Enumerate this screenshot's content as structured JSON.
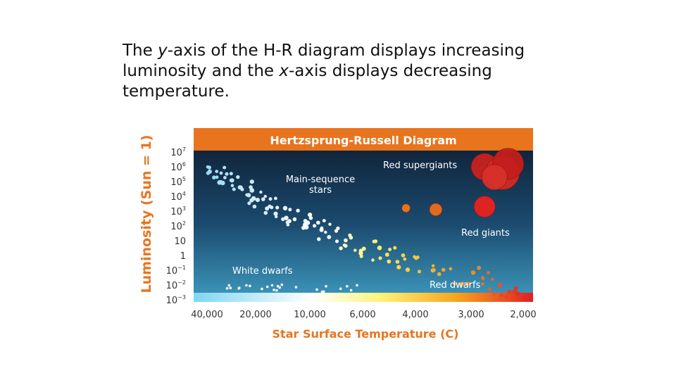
{
  "caption": {
    "part1": "The ",
    "y_em": "y",
    "part2": "-axis of the H-R diagram displays increasing luminosity and the ",
    "x_em": "x",
    "part3": "-axis displays decreasing temperature."
  },
  "chart_data": {
    "type": "scatter",
    "title": "Hertzsprung-Russell Diagram",
    "ylabel": "Luminosity (Sun = 1)",
    "xlabel": "Star Surface Temperature (C)",
    "x_ticks": [
      "40,000",
      "20,000",
      "10,000",
      "6,000",
      "4,000",
      "3,000",
      "2,000"
    ],
    "y_ticks": [
      {
        "base": "10",
        "exp": "7"
      },
      {
        "base": "10",
        "exp": "6"
      },
      {
        "base": "10",
        "exp": "5"
      },
      {
        "base": "10",
        "exp": "4"
      },
      {
        "base": "10",
        "exp": "3"
      },
      {
        "base": "10",
        "exp": "2"
      },
      {
        "base": "10",
        "exp": ""
      },
      {
        "base": "1",
        "exp": ""
      },
      {
        "base": "10",
        "exp": "−1"
      },
      {
        "base": "10",
        "exp": "−2"
      },
      {
        "base": "10",
        "exp": "−3"
      }
    ],
    "regions": {
      "main_sequence_1": "Main-sequence",
      "main_sequence_2": "stars",
      "red_supergiants": "Red supergiants",
      "red_giants": "Red giants",
      "white_dwarfs": "White dwarfs",
      "red_dwarfs": "Red dwarfs"
    },
    "main_sequence": {
      "temp_start": 40000,
      "temp_end": 2000,
      "log_lum_start": 6.0,
      "log_lum_end": -2.6,
      "count": 130
    },
    "white_dwarfs": {
      "count": 24,
      "temp_range": [
        30000,
        6000
      ],
      "log_lum_range": [
        -2.5,
        -1.9
      ]
    },
    "giants": [
      {
        "temp": 2700,
        "log_lum": 6.0,
        "r": 19
      },
      {
        "temp": 2350,
        "log_lum": 5.6,
        "r": 24
      },
      {
        "temp": 2250,
        "log_lum": 6.2,
        "r": 22
      },
      {
        "temp": 2500,
        "log_lum": 5.3,
        "r": 18
      },
      {
        "temp": 2700,
        "log_lum": 3.3,
        "r": 15
      },
      {
        "temp": 3600,
        "log_lum": 3.1,
        "r": 9
      },
      {
        "temp": 4300,
        "log_lum": 3.2,
        "r": 6
      }
    ],
    "colors": {
      "title_bar": "#e8741e",
      "axis_label": "#e8741e",
      "bg_top": "#0f1c30",
      "bg_bottom": "#3b8fb4",
      "text_light": "#ffffff"
    }
  }
}
